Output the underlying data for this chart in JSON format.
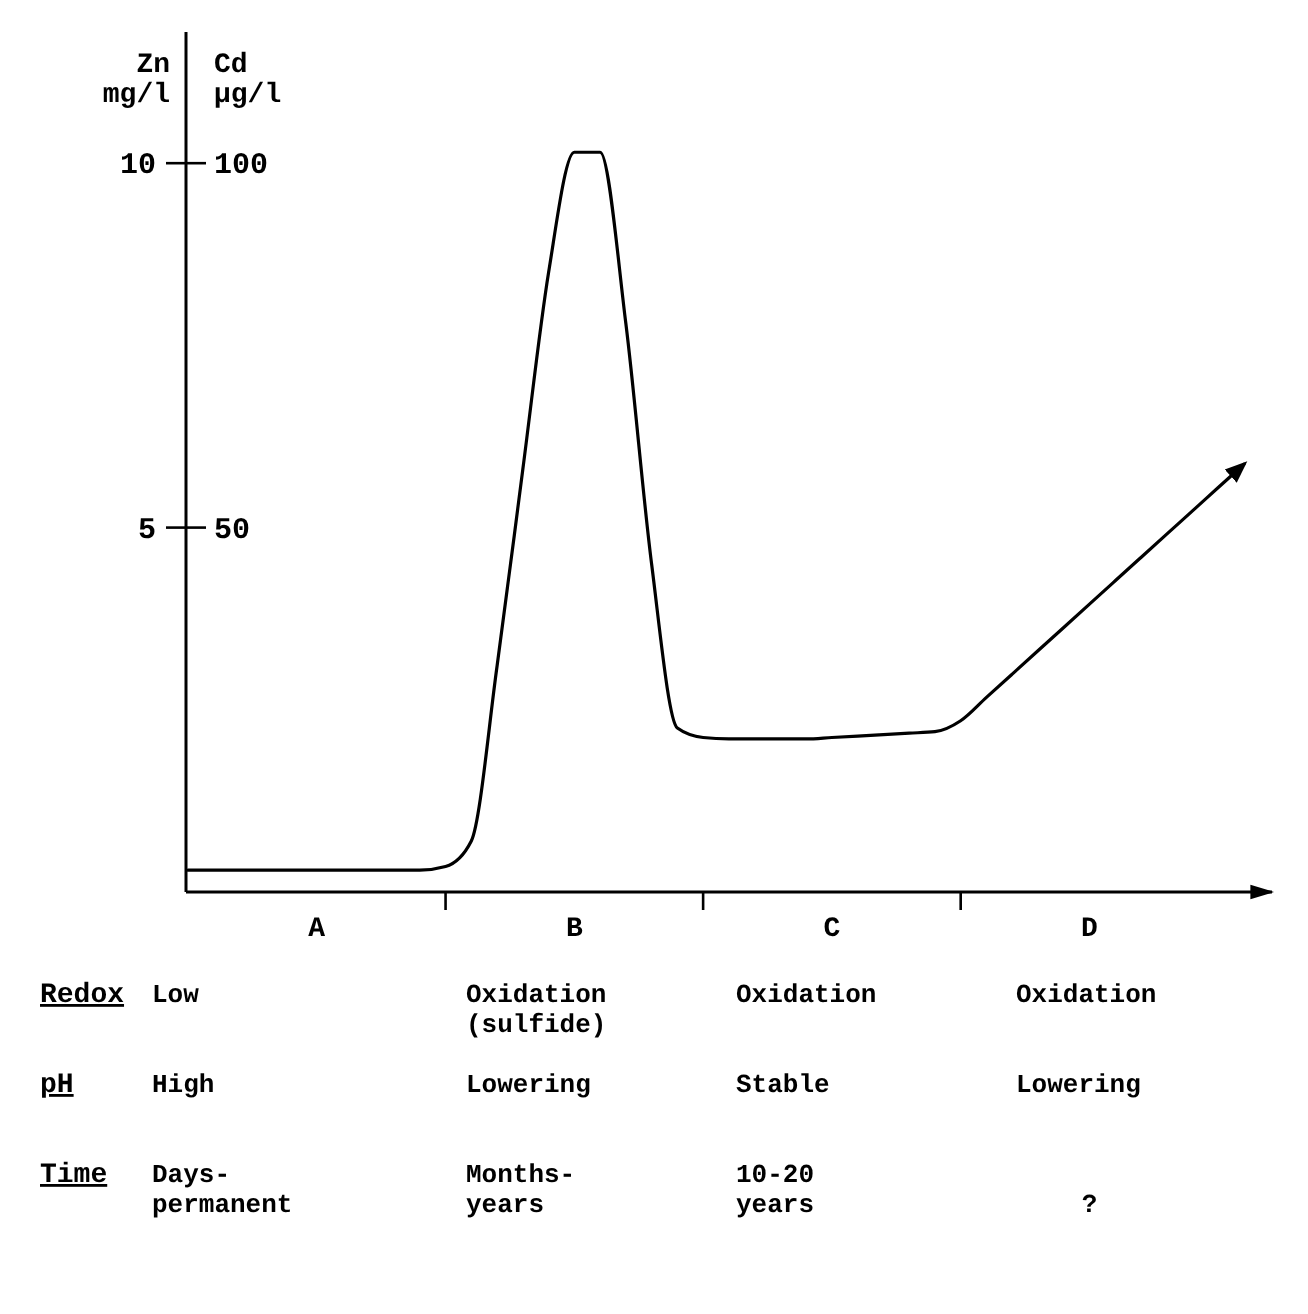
{
  "chart_data": {
    "type": "line",
    "ylabel": "Zn\nmg/l",
    "y2label": "Cd\nµg/l",
    "categories": [
      null,
      null,
      null,
      null,
      null,
      "A",
      null,
      null,
      null,
      null,
      null,
      null,
      null,
      null,
      null,
      "B",
      null,
      null,
      null,
      null,
      null,
      null,
      null,
      null,
      null,
      "C",
      null,
      null,
      null,
      null,
      null,
      null,
      null,
      null,
      null,
      "D",
      null,
      null,
      null,
      null,
      null,
      null
    ],
    "series": [
      {
        "color": "#000000",
        "values": [
          0.3,
          0.3,
          0.3,
          0.3,
          0.3,
          0.3,
          0.3,
          0.3,
          0.3,
          0.3,
          0.35,
          0.7,
          3.1,
          5.8,
          8.5,
          10.15,
          10.15,
          7.8,
          4.5,
          2.25,
          2.12,
          2.1,
          2.1,
          2.1,
          2.1,
          2.12,
          2.14,
          2.16,
          2.18,
          2.2,
          2.35,
          2.67,
          2.99,
          3.31,
          3.63,
          3.95,
          4.27,
          4.59,
          4.91,
          5.23,
          5.55,
          5.87
        ]
      }
    ],
    "ylim": [
      0,
      11.8
    ],
    "yticks": [
      5,
      10
    ],
    "y2lim": [
      0,
      118
    ],
    "y2ticks": [
      50,
      100
    ],
    "marker": "none",
    "line_style": "solid",
    "annotations": [
      "Redox",
      "Low",
      "Oxidation\n(sulfide)",
      "Oxidation",
      "Oxidation",
      "pH",
      "High",
      "Lowering",
      "Stable",
      "Lowering",
      "Time",
      "Days-\npermanent",
      "Months-\nyears",
      "10-20\nyears",
      "?"
    ]
  }
}
